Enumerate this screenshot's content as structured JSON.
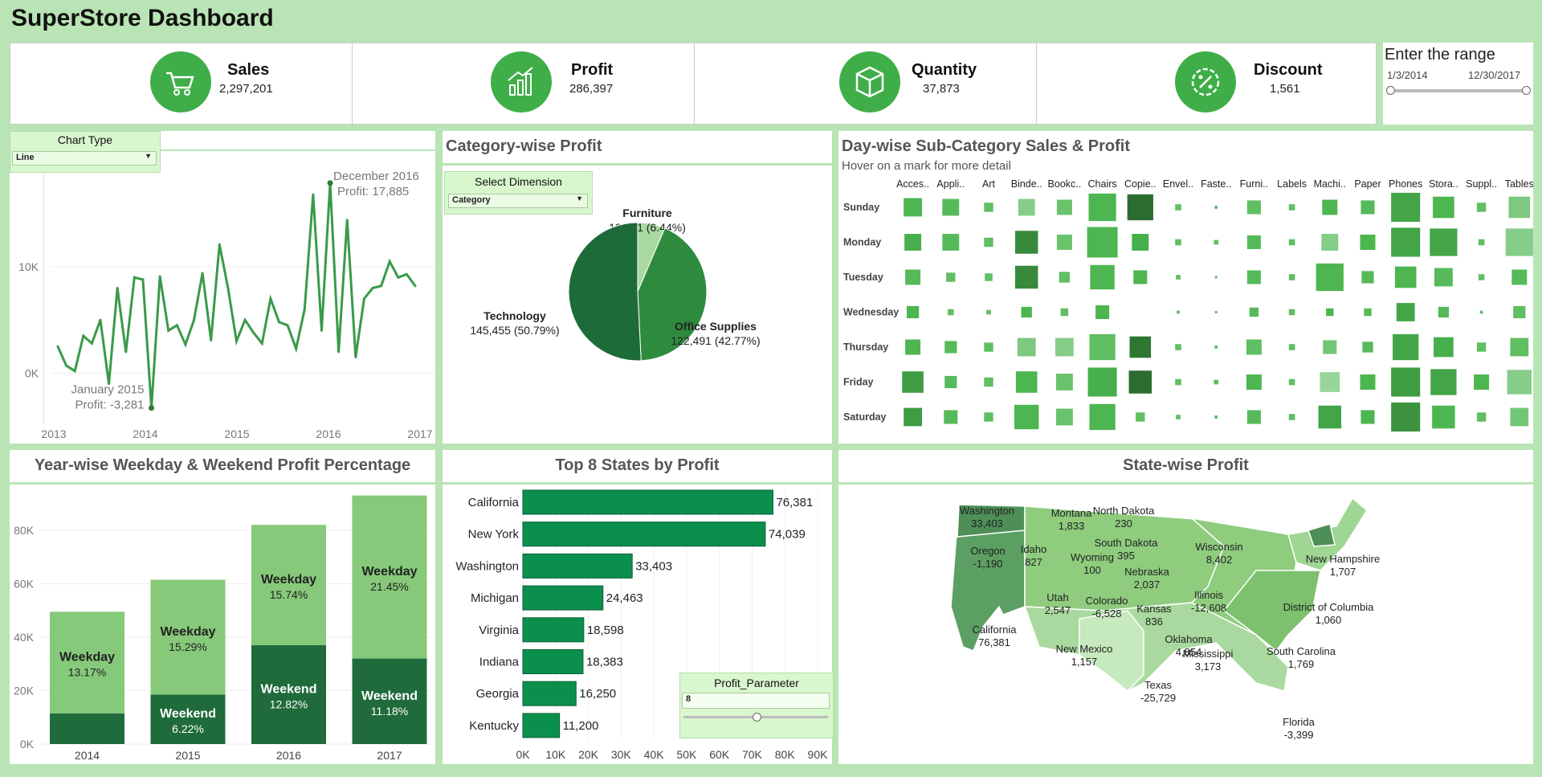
{
  "dashboard": {
    "title": "SuperStore Dashboard"
  },
  "kpis": [
    {
      "name": "Sales",
      "value": "2,297,201",
      "icon": "cart-icon"
    },
    {
      "name": "Profit",
      "value": "286,397",
      "icon": "bar-chart-icon"
    },
    {
      "name": "Quantity",
      "value": "37,873",
      "icon": "box-icon"
    },
    {
      "name": "Discount",
      "value": "1,561",
      "icon": "discount-badge-icon"
    }
  ],
  "range": {
    "title": "Enter the range",
    "start": "1/3/2014",
    "end": "12/30/2017"
  },
  "chart_type": {
    "header": "Chart Type",
    "value": "Line"
  },
  "category_profit": {
    "title": "Category-wise Profit",
    "dimension_header": "Select Dimension",
    "dimension_value": "Category"
  },
  "dayview": {
    "title": "Day-wise Sub-Category Sales & Profit",
    "subtitle": "Hover on a mark for more detail"
  },
  "yearwise": {
    "title": "Year-wise Weekday & Weekend Profit Percentage"
  },
  "topstates": {
    "title": "Top 8 States by Profit",
    "param_header": "Profit_Parameter",
    "param_value": "8"
  },
  "statemap": {
    "title": "State-wise Profit"
  },
  "colors": {
    "bg": "#b9e4b5",
    "accent": "#3fae49",
    "dark": "#1e6b3a",
    "bar": "#0b8f4d"
  },
  "chart_data": [
    {
      "type": "line",
      "title": "",
      "x_ticks": [
        "2013",
        "2014",
        "2015",
        "2016",
        "2017"
      ],
      "y_ticks": [
        "0K",
        "10K"
      ],
      "ylim": [
        -3300,
        19000
      ],
      "values": [
        2500,
        700,
        200,
        3500,
        2800,
        5000,
        -1000,
        8000,
        2000,
        9000,
        8800,
        -3281,
        9100,
        4000,
        4500,
        2700,
        5000,
        9400,
        3100,
        12100,
        8000,
        3000,
        5000,
        3800,
        2800,
        7000,
        4800,
        4500,
        2300,
        6000,
        16800,
        4000,
        17885,
        2000,
        14400,
        1500,
        7000,
        8000,
        8200,
        10500,
        9000,
        9300,
        8200
      ],
      "annotations": [
        {
          "label": "December 2016",
          "detail": "Profit: 17,885",
          "index": 32
        },
        {
          "label": "January 2015",
          "detail": "Profit: -3,281",
          "index": 11
        }
      ]
    },
    {
      "type": "pie",
      "title": "Category-wise Profit",
      "slices": [
        {
          "name": "Furniture",
          "value": 18451,
          "label": "18,451 (6.44%)",
          "color": "#a9d99e"
        },
        {
          "name": "Office Supplies",
          "value": 122491,
          "label": "122,491 (42.77%)",
          "color": "#2e8b3e"
        },
        {
          "name": "Technology",
          "value": 145455,
          "label": "145,455 (50.79%)",
          "color": "#1e6b3a"
        }
      ]
    },
    {
      "type": "heatmap",
      "title": "Day-wise Sub-Category Sales & Profit",
      "columns": [
        "Acces..",
        "Appli..",
        "Art",
        "Binde..",
        "Bookc..",
        "Chairs",
        "Copie..",
        "Envel..",
        "Faste..",
        "Furni..",
        "Labels",
        "Machi..",
        "Paper",
        "Phones",
        "Stora..",
        "Suppl..",
        "Tables"
      ],
      "rows": [
        "Sunday",
        "Monday",
        "Tuesday",
        "Wednesday",
        "Thursday",
        "Friday",
        "Saturday"
      ],
      "sales": [
        [
          0.6,
          0.55,
          0.3,
          0.55,
          0.5,
          0.9,
          0.85,
          0.2,
          0.1,
          0.45,
          0.2,
          0.5,
          0.45,
          0.95,
          0.7,
          0.3,
          0.7
        ],
        [
          0.55,
          0.55,
          0.3,
          0.75,
          0.5,
          1.0,
          0.55,
          0.2,
          0.15,
          0.45,
          0.2,
          0.55,
          0.5,
          0.95,
          0.9,
          0.2,
          0.9
        ],
        [
          0.5,
          0.3,
          0.25,
          0.75,
          0.35,
          0.8,
          0.45,
          0.15,
          0.05,
          0.45,
          0.2,
          0.9,
          0.4,
          0.7,
          0.6,
          0.2,
          0.5
        ],
        [
          0.4,
          0.2,
          0.15,
          0.35,
          0.25,
          0.45,
          0.0,
          0.1,
          0.05,
          0.3,
          0.2,
          0.25,
          0.25,
          0.6,
          0.35,
          0.1,
          0.4
        ],
        [
          0.5,
          0.4,
          0.3,
          0.6,
          0.6,
          0.85,
          0.7,
          0.2,
          0.1,
          0.5,
          0.2,
          0.45,
          0.35,
          0.85,
          0.65,
          0.3,
          0.6
        ],
        [
          0.7,
          0.4,
          0.3,
          0.7,
          0.55,
          0.95,
          0.75,
          0.2,
          0.15,
          0.5,
          0.2,
          0.65,
          0.5,
          0.95,
          0.85,
          0.5,
          0.8
        ],
        [
          0.6,
          0.45,
          0.3,
          0.8,
          0.55,
          0.85,
          0.3,
          0.15,
          0.1,
          0.45,
          0.2,
          0.75,
          0.45,
          0.95,
          0.75,
          0.3,
          0.6
        ]
      ],
      "profit": [
        [
          0.6,
          0.55,
          0.5,
          0.3,
          0.45,
          0.6,
          1.0,
          0.5,
          0.5,
          0.5,
          0.5,
          0.6,
          0.55,
          0.7,
          0.6,
          0.5,
          0.35
        ],
        [
          0.65,
          0.55,
          0.5,
          0.85,
          0.45,
          0.6,
          0.65,
          0.5,
          0.5,
          0.55,
          0.5,
          0.3,
          0.6,
          0.7,
          0.7,
          0.5,
          0.3
        ],
        [
          0.55,
          0.5,
          0.5,
          0.85,
          0.5,
          0.6,
          0.6,
          0.5,
          0.5,
          0.55,
          0.5,
          0.6,
          0.55,
          0.6,
          0.55,
          0.5,
          0.55
        ],
        [
          0.6,
          0.5,
          0.5,
          0.6,
          0.5,
          0.6,
          0.5,
          0.5,
          0.5,
          0.55,
          0.5,
          0.6,
          0.55,
          0.7,
          0.55,
          0.5,
          0.5
        ],
        [
          0.6,
          0.55,
          0.5,
          0.35,
          0.3,
          0.5,
          0.95,
          0.5,
          0.5,
          0.5,
          0.5,
          0.4,
          0.55,
          0.7,
          0.65,
          0.5,
          0.5
        ],
        [
          0.75,
          0.55,
          0.5,
          0.6,
          0.45,
          0.65,
          1.0,
          0.5,
          0.5,
          0.6,
          0.5,
          0.2,
          0.6,
          0.75,
          0.7,
          0.6,
          0.3
        ],
        [
          0.75,
          0.55,
          0.5,
          0.6,
          0.45,
          0.6,
          0.5,
          0.5,
          0.5,
          0.55,
          0.5,
          0.7,
          0.6,
          0.8,
          0.6,
          0.5,
          0.4
        ]
      ]
    },
    {
      "type": "bar",
      "title": "Year-wise Weekday & Weekend Profit Percentage",
      "categories": [
        "2014",
        "2015",
        "2016",
        "2017"
      ],
      "y_ticks": [
        "0K",
        "20K",
        "40K",
        "60K",
        "80K"
      ],
      "ylim": [
        0,
        95000
      ],
      "series": [
        {
          "name": "Weekend",
          "values": [
            11500,
            18500,
            37000,
            32000
          ],
          "labels": [
            "",
            "6.22%",
            "12.82%",
            "11.18%"
          ]
        },
        {
          "name": "Weekday",
          "values": [
            38000,
            43000,
            45000,
            61000
          ],
          "labels": [
            "13.17%",
            "15.29%",
            "15.74%",
            "21.45%"
          ]
        }
      ]
    },
    {
      "type": "bar",
      "title": "Top 8 States by Profit",
      "categories": [
        "California",
        "New York",
        "Washington",
        "Michigan",
        "Virginia",
        "Indiana",
        "Georgia",
        "Kentucky"
      ],
      "values": [
        76381,
        74039,
        33403,
        24463,
        18598,
        18383,
        16250,
        11200
      ],
      "labels": [
        "76,381",
        "74,039",
        "33,403",
        "24,463",
        "18,598",
        "18,383",
        "16,250",
        "11,200"
      ],
      "x_ticks": [
        "0K",
        "10K",
        "20K",
        "30K",
        "40K",
        "50K",
        "60K",
        "70K",
        "80K",
        "90K"
      ],
      "xlim": [
        0,
        90000
      ]
    }
  ],
  "map_labels": [
    {
      "name": "Washington",
      "value": "33,403"
    },
    {
      "name": "Montana",
      "value": "1,833"
    },
    {
      "name": "North Dakota",
      "value": "230"
    },
    {
      "name": "South Dakota",
      "value": "395"
    },
    {
      "name": "Oregon",
      "value": "-1,190"
    },
    {
      "name": "Idaho",
      "value": "827"
    },
    {
      "name": "Wyoming",
      "value": "100"
    },
    {
      "name": "Wisconsin",
      "value": "8,402"
    },
    {
      "name": "New Hampshire",
      "value": "1,707"
    },
    {
      "name": "Nebraska",
      "value": "2,037"
    },
    {
      "name": "Illinois",
      "value": "-12,608"
    },
    {
      "name": "Utah",
      "value": "2,547"
    },
    {
      "name": "Colorado",
      "value": "-6,528"
    },
    {
      "name": "Kansas",
      "value": "836"
    },
    {
      "name": "District of Columbia",
      "value": "1,060"
    },
    {
      "name": "California",
      "value": "76,381"
    },
    {
      "name": "Oklahoma",
      "value": "4,854"
    },
    {
      "name": "New Mexico",
      "value": "1,157"
    },
    {
      "name": "Mississippi",
      "value": "3,173"
    },
    {
      "name": "South Carolina",
      "value": "1,769"
    },
    {
      "name": "Texas",
      "value": "-25,729"
    },
    {
      "name": "Florida",
      "value": "-3,399"
    }
  ]
}
